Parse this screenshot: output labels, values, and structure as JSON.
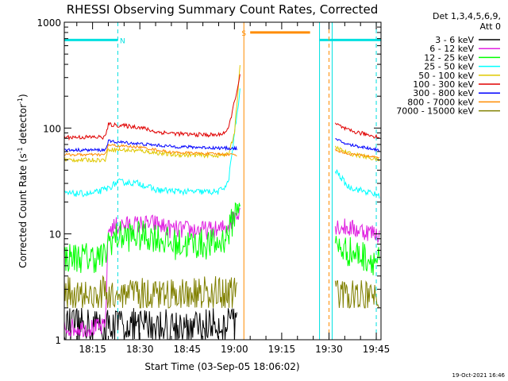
{
  "chart_data": {
    "type": "line",
    "title": "RHESSI Observing Summary Count Rates, Corrected",
    "xlabel": "Start Time (03-Sep-05 18:06:02)",
    "ylabel_main": "Corrected Count Rate (s",
    "ylabel_sup1": "-1",
    "ylabel_mid": " detector",
    "ylabel_sup2": "-1",
    "ylabel_end": ")",
    "yscale": "log",
    "ylim": [
      1,
      1000
    ],
    "xlim_minutes": [
      6.03,
      106.5
    ],
    "x_ticks": [
      {
        "label": "18:15",
        "minutes": 15
      },
      {
        "label": "18:30",
        "minutes": 30
      },
      {
        "label": "18:45",
        "minutes": 45
      },
      {
        "label": "19:00",
        "minutes": 60
      },
      {
        "label": "19:15",
        "minutes": 75
      },
      {
        "label": "19:30",
        "minutes": 90
      },
      {
        "label": "19:45",
        "minutes": 105
      }
    ],
    "y_ticks": [
      {
        "label": "1",
        "value": 1
      },
      {
        "label": "10",
        "value": 10
      },
      {
        "label": "100",
        "value": 100
      },
      {
        "label": "1000",
        "value": 1000
      }
    ],
    "legend_header": [
      "Det 1,3,4,5,6,9,",
      "Att 0"
    ],
    "timestamp": "19-Oct-2021 16:46",
    "gaps_minutes": [
      [
        63,
        87
      ],
      [
        90,
        91
      ]
    ],
    "series": [
      {
        "name": "3 - 6 keV",
        "color": "#000000",
        "mode": "noise",
        "points": [
          [
            23,
            2.5
          ],
          [
            40,
            2.0
          ],
          [
            45,
            1.5
          ],
          [
            55,
            1.8
          ],
          [
            60,
            2.0
          ],
          [
            61,
            2.5
          ]
        ],
        "lo": 1.0,
        "hi": 2.0
      },
      {
        "name": "6 - 12 keV",
        "color": "#e020e0",
        "mode": "normal",
        "points": [
          [
            19,
            1.3
          ],
          [
            20,
            11
          ],
          [
            23,
            12
          ],
          [
            35,
            12.5
          ],
          [
            40,
            11
          ],
          [
            55,
            10.8
          ],
          [
            58,
            12
          ],
          [
            62,
            18
          ]
        ],
        "post": [
          [
            92,
            12
          ],
          [
            106,
            10
          ]
        ],
        "jitter": 0.18
      },
      {
        "name": "12 - 25 keV",
        "color": "#00ff00",
        "mode": "normal",
        "points": [
          [
            6,
            6
          ],
          [
            19,
            6
          ],
          [
            20,
            8.5
          ],
          [
            23,
            9.5
          ],
          [
            35,
            9.5
          ],
          [
            40,
            8
          ],
          [
            55,
            8
          ],
          [
            58,
            10
          ],
          [
            62,
            23
          ]
        ],
        "post": [
          [
            92,
            7.5
          ],
          [
            106,
            5.5
          ]
        ],
        "jitter": 0.3
      },
      {
        "name": "25 - 50 keV",
        "color": "#00ffff",
        "mode": "normal",
        "points": [
          [
            6,
            24
          ],
          [
            15,
            24
          ],
          [
            20,
            27
          ],
          [
            23,
            31
          ],
          [
            30,
            30
          ],
          [
            35,
            26
          ],
          [
            45,
            25
          ],
          [
            55,
            25
          ],
          [
            58,
            30
          ],
          [
            62,
            250
          ]
        ],
        "post": [
          [
            92,
            40
          ],
          [
            96,
            28
          ],
          [
            106,
            23
          ]
        ],
        "jitter": 0.06
      },
      {
        "name": "50 - 100 keV",
        "color": "#e0c800",
        "mode": "normal",
        "points": [
          [
            6,
            50
          ],
          [
            19,
            50
          ],
          [
            20,
            63
          ],
          [
            30,
            61
          ],
          [
            40,
            56
          ],
          [
            55,
            55
          ],
          [
            58,
            56
          ],
          [
            60,
            90
          ],
          [
            62,
            450
          ]
        ],
        "post": [
          [
            92,
            66
          ],
          [
            96,
            58
          ],
          [
            106,
            50
          ]
        ],
        "jitter": 0.04
      },
      {
        "name": "100 - 300 keV",
        "color": "#e00000",
        "mode": "normal",
        "points": [
          [
            6,
            82
          ],
          [
            19,
            82
          ],
          [
            20,
            108
          ],
          [
            30,
            102
          ],
          [
            35,
            92
          ],
          [
            45,
            87
          ],
          [
            55,
            86
          ],
          [
            58,
            95
          ],
          [
            62,
            330
          ]
        ],
        "post": [
          [
            92,
            110
          ],
          [
            96,
            95
          ],
          [
            106,
            82
          ]
        ],
        "jitter": 0.04
      },
      {
        "name": "300 - 800 keV",
        "color": "#0000ff",
        "mode": "normal",
        "points": [
          [
            6,
            62
          ],
          [
            19,
            62
          ],
          [
            20,
            75
          ],
          [
            30,
            71
          ],
          [
            40,
            67
          ],
          [
            61,
            64
          ]
        ],
        "post": [
          [
            92,
            78
          ],
          [
            96,
            70
          ],
          [
            106,
            62
          ]
        ],
        "jitter": 0.03
      },
      {
        "name": "800 - 7000 keV",
        "color": "#ff8c00",
        "mode": "normal",
        "points": [
          [
            6,
            56
          ],
          [
            19,
            56
          ],
          [
            20,
            69
          ],
          [
            30,
            66
          ],
          [
            40,
            59
          ],
          [
            61,
            56
          ]
        ],
        "post": [
          [
            92,
            62
          ],
          [
            96,
            57
          ],
          [
            106,
            53
          ]
        ],
        "jitter": 0.025
      },
      {
        "name": "7000 - 15000 keV",
        "color": "#808000",
        "mode": "noise",
        "points": [
          [
            6,
            3.5
          ],
          [
            61,
            3.8
          ]
        ],
        "post": [
          [
            92,
            3.3
          ],
          [
            106,
            3.0
          ]
        ],
        "lo": 2.0,
        "hi": 4.0
      }
    ],
    "flag_bars": [
      {
        "label": "N",
        "color": "#00e0e0",
        "x0": 6.03,
        "x1": 23,
        "value": 680,
        "label_at": 24.5
      },
      {
        "label": "S",
        "color": "#ff8c00",
        "x0": 65,
        "x1": 84,
        "value": 800,
        "label_at": 63
      },
      {
        "label": "",
        "color": "#00e0e0",
        "x0": 87,
        "x1": 106.5,
        "value": 680,
        "label_at": 0
      }
    ],
    "vlines": [
      {
        "x": 23,
        "color": "#00e0e0",
        "style": "dashed"
      },
      {
        "x": 63,
        "color": "#ff8c00",
        "style": "solid"
      },
      {
        "x": 87,
        "color": "#00e0e0",
        "style": "solid"
      },
      {
        "x": 90,
        "color": "#ff8c00",
        "style": "dashed"
      },
      {
        "x": 91,
        "color": "#00e0e0",
        "style": "solid"
      },
      {
        "x": 105,
        "color": "#00e0e0",
        "style": "dashed"
      }
    ]
  }
}
